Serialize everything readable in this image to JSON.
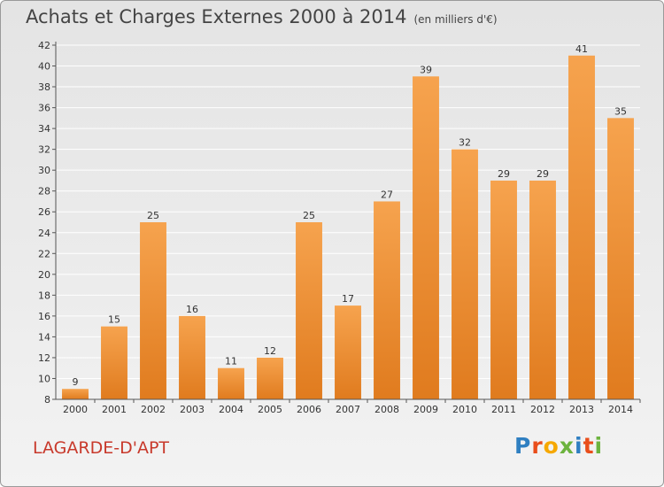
{
  "header": {
    "title": "Achats et Charges Externes 2000 à 2014",
    "subtitle": "(en milliers d'€)"
  },
  "footer": {
    "commune": "LAGARDE-D'APT",
    "logo_letters": [
      "P",
      "r",
      "o",
      "x",
      "i",
      "t",
      "i"
    ],
    "logo_colors": [
      "#2f7fc1",
      "#e94e1b",
      "#f6a800",
      "#6cb33e",
      "#2f7fc1",
      "#e94e1b",
      "#6cb33e"
    ]
  },
  "colors": {
    "bar_light": "#f6a34e",
    "bar_dark": "#e07b1e",
    "grid": "#ffffff",
    "axis": "#555555"
  },
  "chart_data": {
    "type": "bar",
    "title": "Achats et Charges Externes 2000 à 2014",
    "xlabel": "",
    "ylabel": "",
    "categories": [
      "2000",
      "2001",
      "2002",
      "2003",
      "2004",
      "2005",
      "2006",
      "2007",
      "2008",
      "2009",
      "2010",
      "2011",
      "2012",
      "2013",
      "2014"
    ],
    "values": [
      9,
      15,
      25,
      16,
      11,
      12,
      25,
      17,
      27,
      39,
      32,
      29,
      29,
      41,
      35
    ],
    "ylim": [
      8,
      42
    ],
    "yticks": [
      8,
      10,
      12,
      14,
      16,
      18,
      20,
      22,
      24,
      26,
      28,
      30,
      32,
      34,
      36,
      38,
      40,
      42
    ],
    "grid": true
  }
}
